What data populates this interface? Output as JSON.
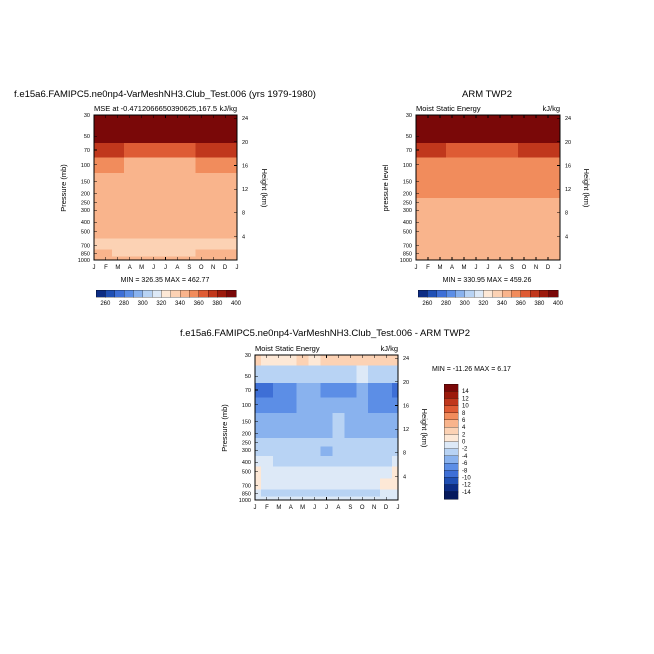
{
  "months": [
    "J",
    "F",
    "M",
    "A",
    "M",
    "J",
    "J",
    "A",
    "S",
    "O",
    "N",
    "D",
    "J"
  ],
  "pressure_ticks": [
    30,
    50,
    70,
    100,
    150,
    200,
    250,
    300,
    400,
    500,
    700,
    850,
    1000
  ],
  "height_ticks": [
    4,
    8,
    12,
    16,
    20,
    24
  ],
  "panels": [
    {
      "title": "f.e15a6.FAMIPC5.ne0np4-VarMeshNH3.Club_Test.006 (yrs 1979-1980)",
      "left_label": "MSE at -0.4712066650390625,167.5",
      "right_label": "kJ/kg",
      "ylabel": "Pressure (mb)",
      "y2label": "Height (km)",
      "stats": "MIN = 326.35 MAX = 462.77"
    },
    {
      "title": "ARM TWP2",
      "left_label": "Moist Static Energy",
      "right_label": "kJ/kg",
      "ylabel": "pressure level",
      "y2label": "Height (km)",
      "stats": "MIN = 330.95 MAX = 459.26"
    },
    {
      "title": "f.e15a6.FAMIPC5.ne0np4-VarMeshNH3.Club_Test.006 - ARM TWP2",
      "left_label": "Moist Static Energy",
      "right_label": "kJ/kg",
      "ylabel": "Pressure (mb)",
      "y2label": "Height (km)",
      "stats": "MIN = -11.26 MAX =   6.17"
    }
  ],
  "chart_data": [
    {
      "type": "heatmap",
      "title": "f.e15a6.FAMIPC5.ne0np4-VarMeshNH3.Club_Test.006 (yrs 1979-1980)",
      "ylabel": "Pressure (mb)",
      "y2label": "Height (km)",
      "x": [
        "J",
        "F",
        "M",
        "A",
        "M",
        "J",
        "J",
        "A",
        "S",
        "O",
        "N",
        "D",
        "J"
      ],
      "y_pressure_mb": [
        30,
        50,
        70,
        100,
        150,
        200,
        250,
        300,
        400,
        500,
        700,
        850,
        1000
      ],
      "colorbar_levels": [
        260,
        280,
        300,
        320,
        340,
        360,
        380,
        400
      ],
      "colorbar_colors": [
        "#0c2c84",
        "#1f4fb4",
        "#3e6fd6",
        "#5c8ee6",
        "#89b2ee",
        "#b8d3f4",
        "#dde9f7",
        "#fde8d6",
        "#fcd2b4",
        "#f9b48c",
        "#f18c5c",
        "#de5b34",
        "#c0371c",
        "#9c1a0c",
        "#7a0808"
      ],
      "values": [
        [
          462,
          462,
          462,
          461,
          460,
          460,
          459,
          460,
          461,
          462,
          462,
          462,
          462
        ],
        [
          420,
          418,
          412,
          410,
          408,
          406,
          405,
          406,
          408,
          412,
          416,
          418,
          420
        ],
        [
          376,
          375,
          372,
          369,
          368,
          367,
          366,
          367,
          368,
          371,
          374,
          376,
          376
        ],
        [
          352,
          352,
          350,
          349,
          348,
          347,
          347,
          347,
          348,
          350,
          351,
          352,
          352
        ],
        [
          346,
          346,
          346,
          346,
          345,
          345,
          345,
          345,
          345,
          346,
          346,
          346,
          346
        ],
        [
          345,
          345,
          345,
          345,
          345,
          345,
          345,
          345,
          345,
          345,
          345,
          345,
          345
        ],
        [
          344,
          344,
          344,
          344,
          344,
          344,
          344,
          344,
          344,
          344,
          344,
          344,
          344
        ],
        [
          343,
          343,
          343,
          343,
          343,
          343,
          343,
          343,
          343,
          343,
          343,
          343,
          343
        ],
        [
          342,
          342,
          342,
          342,
          342,
          342,
          342,
          342,
          342,
          342,
          342,
          342,
          342
        ],
        [
          341,
          341,
          341,
          341,
          341,
          341,
          341,
          341,
          341,
          341,
          341,
          341,
          341
        ],
        [
          339,
          338,
          338,
          337,
          338,
          337,
          336,
          337,
          338,
          338,
          339,
          339,
          339
        ],
        [
          340,
          340,
          339,
          339,
          339,
          339,
          338,
          339,
          339,
          340,
          340,
          340,
          340
        ],
        [
          341,
          341,
          341,
          340,
          340,
          340,
          340,
          340,
          341,
          341,
          341,
          341,
          341
        ]
      ],
      "stats": {
        "min": 326.35,
        "max": 462.77
      }
    },
    {
      "type": "heatmap",
      "title": "ARM TWP2",
      "ylabel": "pressure level",
      "y2label": "Height (km)",
      "x": [
        "J",
        "F",
        "M",
        "A",
        "M",
        "J",
        "J",
        "A",
        "S",
        "O",
        "N",
        "D",
        "J"
      ],
      "y_pressure_mb": [
        30,
        50,
        70,
        100,
        150,
        200,
        250,
        300,
        400,
        500,
        700,
        850,
        1000
      ],
      "colorbar_levels": [
        260,
        280,
        300,
        320,
        340,
        360,
        380,
        400
      ],
      "colorbar_colors": [
        "#0c2c84",
        "#1f4fb4",
        "#3e6fd6",
        "#5c8ee6",
        "#89b2ee",
        "#b8d3f4",
        "#dde9f7",
        "#fde8d6",
        "#fcd2b4",
        "#f9b48c",
        "#f18c5c",
        "#de5b34",
        "#c0371c",
        "#9c1a0c",
        "#7a0808"
      ],
      "values": [
        [
          459,
          459,
          459,
          458,
          458,
          457,
          457,
          457,
          458,
          459,
          459,
          459,
          459
        ],
        [
          418,
          416,
          412,
          409,
          407,
          406,
          405,
          406,
          408,
          411,
          415,
          417,
          418
        ],
        [
          374,
          373,
          371,
          369,
          367,
          366,
          366,
          366,
          368,
          370,
          372,
          374,
          374
        ],
        [
          356,
          356,
          355,
          354,
          353,
          353,
          353,
          353,
          354,
          355,
          356,
          356,
          356
        ],
        [
          352,
          352,
          351,
          351,
          351,
          351,
          351,
          351,
          351,
          352,
          352,
          352,
          352
        ],
        [
          350,
          350,
          350,
          350,
          350,
          350,
          350,
          350,
          350,
          350,
          350,
          350,
          350
        ],
        [
          348,
          348,
          348,
          348,
          348,
          348,
          348,
          348,
          348,
          348,
          348,
          348,
          348
        ],
        [
          346,
          346,
          346,
          346,
          346,
          347,
          347,
          347,
          347,
          346,
          346,
          346,
          346
        ],
        [
          342,
          342,
          342,
          342,
          342,
          342,
          342,
          342,
          342,
          342,
          342,
          342,
          342
        ],
        [
          341,
          341,
          341,
          341,
          341,
          341,
          341,
          341,
          341,
          341,
          341,
          341,
          341
        ],
        [
          340,
          340,
          340,
          340,
          340,
          340,
          340,
          340,
          340,
          340,
          340,
          340,
          340
        ],
        [
          341,
          341,
          341,
          341,
          341,
          341,
          341,
          341,
          341,
          341,
          341,
          341,
          341
        ],
        [
          342,
          342,
          342,
          342,
          342,
          342,
          342,
          342,
          342,
          342,
          342,
          342,
          342
        ]
      ],
      "stats": {
        "min": 330.95,
        "max": 459.26
      }
    },
    {
      "type": "heatmap",
      "title": "f.e15a6.FAMIPC5.ne0np4-VarMeshNH3.Club_Test.006 - ARM TWP2",
      "ylabel": "Pressure (mb)",
      "y2label": "Height (km)",
      "x": [
        "J",
        "F",
        "M",
        "A",
        "M",
        "J",
        "J",
        "A",
        "S",
        "O",
        "N",
        "D",
        "J"
      ],
      "y_pressure_mb": [
        30,
        50,
        70,
        100,
        150,
        200,
        250,
        300,
        400,
        500,
        700,
        850,
        1000
      ],
      "colorbar_levels": [
        14,
        12,
        10,
        8,
        6,
        4,
        2,
        0,
        -2,
        -4,
        -6,
        -8,
        -10,
        -12,
        -14
      ],
      "colorbar_colors": [
        "#7a0808",
        "#9c1a0c",
        "#c0371c",
        "#de5b34",
        "#f18c5c",
        "#f9b48c",
        "#fcd2b4",
        "#fde8d6",
        "#dde9f7",
        "#b8d3f4",
        "#89b2ee",
        "#5c8ee6",
        "#3e6fd6",
        "#1f4fb4",
        "#0c2c84",
        "#061a5c"
      ],
      "values": [
        [
          2,
          1,
          1,
          1,
          2,
          1,
          2,
          2,
          2,
          2,
          3,
          2,
          2
        ],
        [
          -3,
          -4,
          -4,
          -4,
          -3,
          -3,
          -3,
          -3,
          -3,
          -2,
          -3,
          -3,
          -3
        ],
        [
          -9,
          -10,
          -8,
          -7,
          -6,
          -6,
          -7,
          -7,
          -7,
          -6,
          -7,
          -8,
          -9
        ],
        [
          -7,
          -8,
          -7,
          -7,
          -6,
          -6,
          -6,
          -6,
          -6,
          -6,
          -7,
          -8,
          -8
        ],
        [
          -6,
          -6,
          -6,
          -6,
          -6,
          -5,
          -5,
          -4,
          -5,
          -6,
          -6,
          -6,
          -6
        ],
        [
          -5,
          -5,
          -5,
          -5,
          -5,
          -5,
          -5,
          -3,
          -5,
          -5,
          -5,
          -5,
          -5
        ],
        [
          -4,
          -4,
          -4,
          -4,
          -4,
          -4,
          -4,
          -4,
          -4,
          -4,
          -4,
          -4,
          -4
        ],
        [
          -4,
          -4,
          -4,
          -4,
          -4,
          -4,
          -5,
          -4,
          -4,
          -4,
          -4,
          -4,
          -4
        ],
        [
          -2,
          -2,
          -3,
          -3,
          -3,
          -3,
          -3,
          -3,
          -3,
          -3,
          -3,
          -3,
          -2
        ],
        [
          0,
          -2,
          -2,
          -2,
          -2,
          -1,
          -2,
          -2,
          -2,
          -2,
          -2,
          -1,
          0
        ],
        [
          1,
          -1,
          -1,
          -1,
          -1,
          -1,
          -1,
          -1,
          -1,
          -1,
          -1,
          0,
          1
        ],
        [
          -1,
          -3,
          -3,
          -4,
          -3,
          -3,
          -3,
          -3,
          -3,
          -3,
          -3,
          -2,
          -1
        ],
        [
          -1,
          -1,
          -1,
          -2,
          -1,
          -1,
          -1,
          -1,
          -1,
          -1,
          -1,
          -1,
          -1
        ]
      ],
      "stats": {
        "min": -11.26,
        "max": 6.17
      }
    }
  ]
}
